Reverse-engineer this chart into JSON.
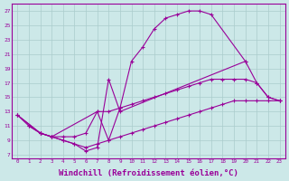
{
  "background_color": "#cce8e8",
  "grid_color": "#aacccc",
  "line_color": "#990099",
  "xlabel": "Windchill (Refroidissement éolien,°C)",
  "xlabel_fontsize": 6.5,
  "ytick_labels": [
    7,
    9,
    11,
    13,
    15,
    17,
    19,
    21,
    23,
    25,
    27
  ],
  "xtick_labels": [
    0,
    1,
    2,
    3,
    4,
    5,
    6,
    7,
    8,
    9,
    10,
    11,
    12,
    13,
    14,
    15,
    16,
    17,
    18,
    19,
    20,
    21,
    22,
    23
  ],
  "xlim": [
    -0.5,
    23.5
  ],
  "ylim": [
    6.5,
    28
  ],
  "lines": [
    {
      "x": [
        1,
        2,
        3,
        4,
        5,
        6,
        7,
        8,
        9,
        10,
        11,
        12,
        13,
        14,
        15,
        16,
        17,
        20
      ],
      "y": [
        11,
        10,
        9.5,
        9.5,
        9.5,
        10,
        13,
        9,
        13.5,
        20,
        22,
        24.5,
        26,
        26.5,
        27,
        27,
        26.5,
        20
      ]
    },
    {
      "x": [
        0,
        1,
        2,
        3,
        4,
        5,
        6,
        7,
        8,
        9,
        20,
        21,
        22,
        23
      ],
      "y": [
        12.5,
        11,
        10,
        9.5,
        9,
        8.5,
        7.5,
        8,
        17.5,
        13,
        20,
        17,
        15,
        14.5
      ]
    },
    {
      "x": [
        0,
        2,
        3,
        7,
        8,
        9,
        10,
        11,
        12,
        13,
        14,
        15,
        16,
        17,
        18,
        19,
        20,
        21,
        22,
        23
      ],
      "y": [
        12.5,
        10,
        9.5,
        13,
        13,
        13.5,
        14,
        14.5,
        15,
        15.5,
        16,
        16.5,
        17,
        17.5,
        17.5,
        17.5,
        17.5,
        17,
        15,
        14.5
      ]
    },
    {
      "x": [
        0,
        2,
        3,
        4,
        5,
        6,
        7,
        8,
        9,
        10,
        11,
        12,
        13,
        14,
        15,
        16,
        17,
        18,
        19,
        20,
        21,
        22,
        23
      ],
      "y": [
        12.5,
        10,
        9.5,
        9,
        8.5,
        8,
        8.5,
        9,
        9.5,
        10,
        10.5,
        11,
        11.5,
        12,
        12.5,
        13,
        13.5,
        14,
        14.5,
        14.5,
        14.5,
        14.5,
        14.5
      ]
    }
  ]
}
